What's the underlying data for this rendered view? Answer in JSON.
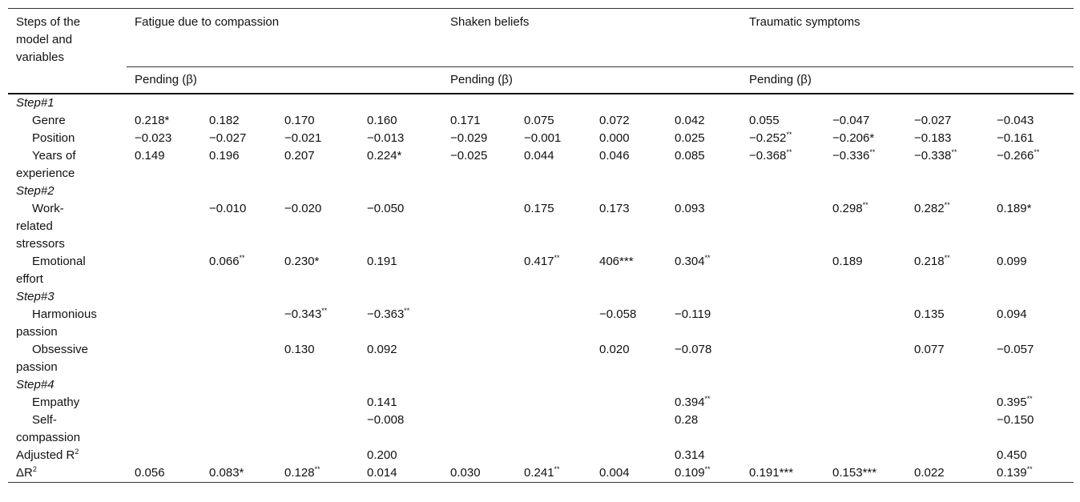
{
  "header": {
    "stub": "Steps of the model and variables",
    "groups": [
      {
        "title": "Fatigue due to compassion",
        "sub": "Pending (β)"
      },
      {
        "title": "Shaken beliefs",
        "sub": "Pending (β)"
      },
      {
        "title": "Traumatic symptoms",
        "sub": "Pending (β)"
      }
    ]
  },
  "rows": [
    {
      "section": "Step#1"
    },
    {
      "label": "Genre",
      "indent": true,
      "cells": [
        "0.218*",
        "0.182",
        "0.170",
        "0.160",
        "0.171",
        "0.075",
        "0.072",
        "0.042",
        "0.055",
        "−0.047",
        "−0.027",
        "−0.043"
      ]
    },
    {
      "label": "Position",
      "indent": true,
      "cells": [
        "−0.023",
        "−0.027",
        "−0.021",
        "−0.013",
        "−0.029",
        "−0.001",
        "0.000",
        "0.025",
        {
          "text": "−0.252",
          "sup": "**"
        },
        "−0.206*",
        "−0.183",
        "−0.161"
      ]
    },
    {
      "label": "Years of experience",
      "indent": true,
      "cells": [
        "0.149",
        "0.196",
        "0.207",
        "0.224*",
        "−0.025",
        "0.044",
        "0.046",
        "0.085",
        {
          "text": "−0.368",
          "sup": "**"
        },
        {
          "text": "−0.336",
          "sup": "**"
        },
        {
          "text": "−0.338",
          "sup": "**"
        },
        {
          "text": "−0.266",
          "sup": "**"
        }
      ]
    },
    {
      "section": "Step#2"
    },
    {
      "label": "Work-related stressors",
      "indent": true,
      "cells": [
        null,
        "−0.010",
        "−0.020",
        "−0.050",
        null,
        "0.175",
        "0.173",
        "0.093",
        null,
        {
          "text": "0.298",
          "sup": "**"
        },
        {
          "text": "0.282",
          "sup": "**"
        },
        "0.189*"
      ]
    },
    {
      "label": "Emotional effort",
      "indent": true,
      "cells": [
        null,
        {
          "text": "0.066",
          "sup": "**"
        },
        "0.230*",
        "0.191",
        null,
        {
          "text": "0.417",
          "sup": "**"
        },
        "406***",
        {
          "text": "0.304",
          "sup": "**"
        },
        null,
        "0.189",
        {
          "text": "0.218",
          "sup": "**"
        },
        "0.099"
      ]
    },
    {
      "section": "Step#3"
    },
    {
      "label": "Harmonious passion",
      "indent": true,
      "cells": [
        null,
        null,
        {
          "text": "−0.343",
          "sup": "**"
        },
        {
          "text": "−0.363",
          "sup": "**"
        },
        null,
        null,
        "−0.058",
        "−0.119",
        null,
        null,
        "0.135",
        "0.094"
      ]
    },
    {
      "label": "Obsessive passion",
      "indent": true,
      "cells": [
        null,
        null,
        "0.130",
        "0.092",
        null,
        null,
        "0.020",
        "−0.078",
        null,
        null,
        "0.077",
        "−0.057"
      ]
    },
    {
      "section": "Step#4"
    },
    {
      "label": "Empathy",
      "indent": true,
      "cells": [
        null,
        null,
        null,
        "0.141",
        null,
        null,
        null,
        {
          "text": "0.394",
          "sup": "**"
        },
        null,
        null,
        null,
        {
          "text": "0.395",
          "sup": "**"
        }
      ]
    },
    {
      "label": "Self-compassion",
      "indent": true,
      "cells": [
        null,
        null,
        null,
        "−0.008",
        null,
        null,
        null,
        "0.28",
        null,
        null,
        null,
        "−0.150"
      ]
    },
    {
      "label": {
        "text": "Adjusted R",
        "sup": "2"
      },
      "indent": false,
      "cells": [
        null,
        null,
        null,
        "0.200",
        null,
        null,
        null,
        "0.314",
        null,
        null,
        null,
        "0.450"
      ]
    },
    {
      "label": {
        "text": "ΔR",
        "sup": "2"
      },
      "indent": false,
      "cells": [
        "0.056",
        "0.083*",
        {
          "text": "0.128",
          "sup": "**"
        },
        "0.014",
        "0.030",
        {
          "text": "0.241",
          "sup": "**"
        },
        "0.004",
        {
          "text": "0.109",
          "sup": "**"
        },
        "0.191***",
        "0.153***",
        "0.022",
        {
          "text": "0.139",
          "sup": "**"
        }
      ]
    }
  ]
}
